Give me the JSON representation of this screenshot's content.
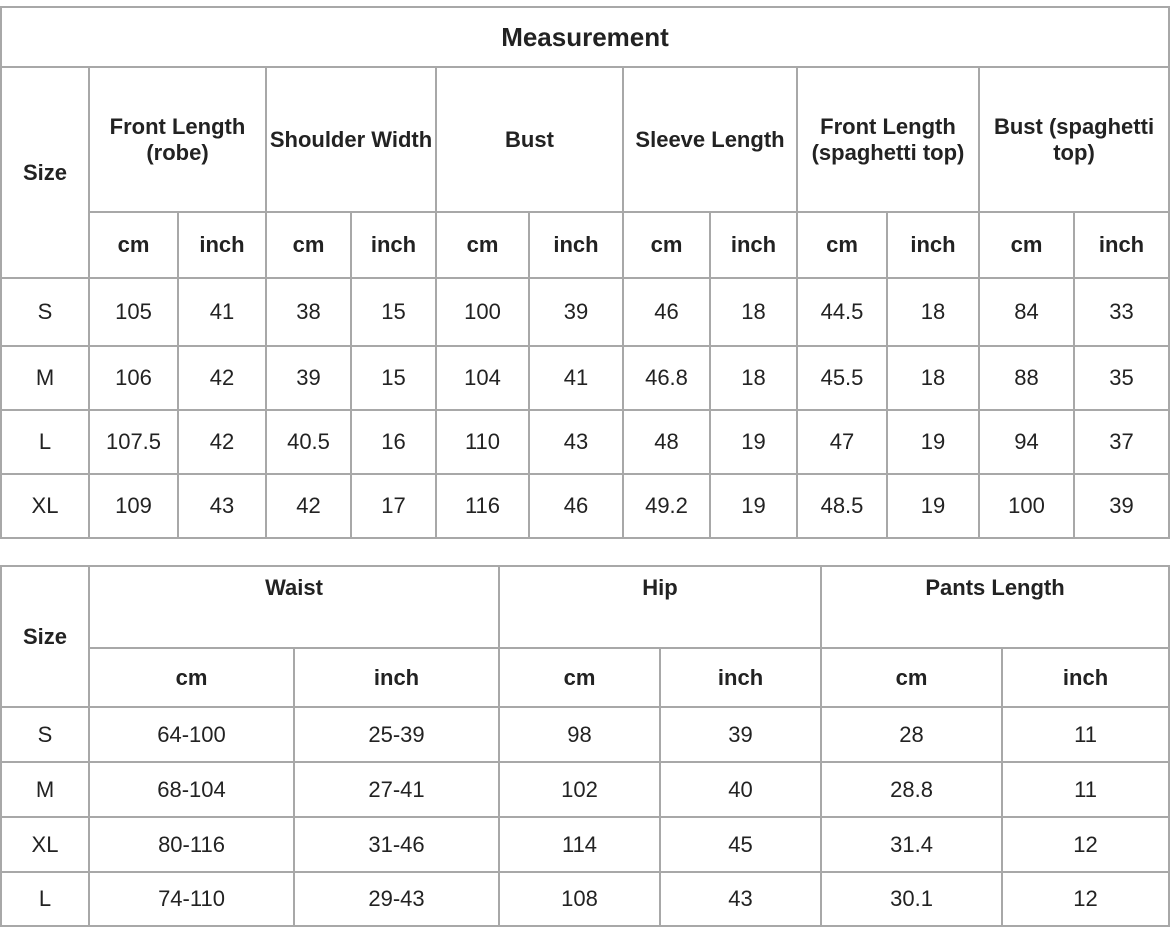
{
  "top_table": {
    "title": "Measurement",
    "size_label": "Size",
    "columns": [
      "Front Length (robe)",
      "Shoulder Width",
      "Bust",
      "Sleeve Length",
      "Front Length (spaghetti top)",
      "Bust (spaghetti top)"
    ],
    "units": [
      "cm",
      "inch"
    ],
    "rows": [
      {
        "size": "S",
        "values": [
          "105",
          "41",
          "38",
          "15",
          "100",
          "39",
          "46",
          "18",
          "44.5",
          "18",
          "84",
          "33"
        ]
      },
      {
        "size": "M",
        "values": [
          "106",
          "42",
          "39",
          "15",
          "104",
          "41",
          "46.8",
          "18",
          "45.5",
          "18",
          "88",
          "35"
        ]
      },
      {
        "size": "L",
        "values": [
          "107.5",
          "42",
          "40.5",
          "16",
          "110",
          "43",
          "48",
          "19",
          "47",
          "19",
          "94",
          "37"
        ]
      },
      {
        "size": "XL",
        "values": [
          "109",
          "43",
          "42",
          "17",
          "116",
          "46",
          "49.2",
          "19",
          "48.5",
          "19",
          "100",
          "39"
        ]
      }
    ]
  },
  "bottom_table": {
    "size_label": "Size",
    "columns": [
      "Waist",
      "Hip",
      "Pants Length"
    ],
    "units": [
      "cm",
      "inch"
    ],
    "rows": [
      {
        "size": "S",
        "values": [
          "64-100",
          "25-39",
          "98",
          "39",
          "28",
          "11"
        ]
      },
      {
        "size": "M",
        "values": [
          "68-104",
          "27-41",
          "102",
          "40",
          "28.8",
          "11"
        ]
      },
      {
        "size": "XL",
        "values": [
          "80-116",
          "31-46",
          "114",
          "45",
          "31.4",
          "12"
        ]
      },
      {
        "size": "L",
        "values": [
          "74-110",
          "29-43",
          "108",
          "43",
          "30.1",
          "12"
        ]
      }
    ]
  }
}
